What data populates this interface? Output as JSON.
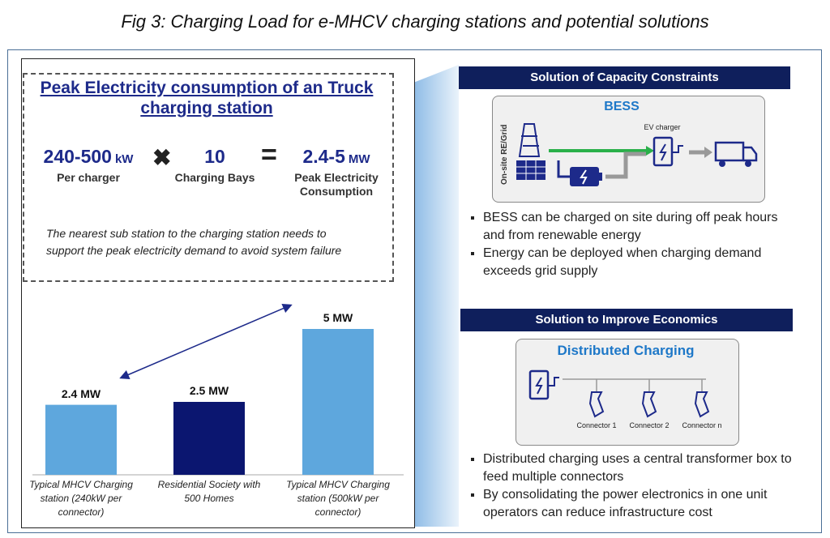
{
  "title": "Fig 3: Charging Load for e-MHCV charging stations and potential solutions",
  "peak": {
    "heading": "Peak Electricity consumption of an Truck charging station",
    "terms": [
      {
        "value": "240-500",
        "unit": "kW",
        "caption": "Per charger"
      },
      {
        "value": "10",
        "caption": "Charging Bays"
      },
      {
        "value": "2.4-5",
        "unit": "MW",
        "caption": "Peak Electricity Consumption"
      }
    ],
    "note": "The nearest sub station to the charging station needs to support the peak electricity demand to avoid system failure"
  },
  "chart_data": {
    "type": "bar",
    "categories": [
      "Typical MHCV Charging station (240kW per connector)",
      "Residential Society with 500 Homes",
      "Typical MHCV Charging station (500kW per connector)"
    ],
    "values": [
      2.4,
      2.5,
      5
    ],
    "value_labels": [
      "2.4 MW",
      "2.5 MW",
      "5 MW"
    ],
    "colors": [
      "#5ea7dd",
      "#0b1670",
      "#5ea7dd"
    ]
  },
  "solutions": [
    {
      "header": "Solution of Capacity Constraints",
      "diagram": {
        "title": "BESS",
        "source": "On-site RE/Grid",
        "charger": "EV charger"
      },
      "bullets": [
        "BESS can be charged on site during off peak hours and from renewable energy",
        "Energy can be deployed when charging demand exceeds grid supply"
      ]
    },
    {
      "header": "Solution to Improve Economics",
      "diagram": {
        "title": "Distributed Charging",
        "connectors": [
          "Connector 1",
          "Connector 2",
          "Connector n"
        ]
      },
      "bullets": [
        "Distributed charging uses a central transformer box to feed multiple connectors",
        "By consolidating the power electronics in one unit operators can reduce infrastructure cost"
      ]
    }
  ]
}
